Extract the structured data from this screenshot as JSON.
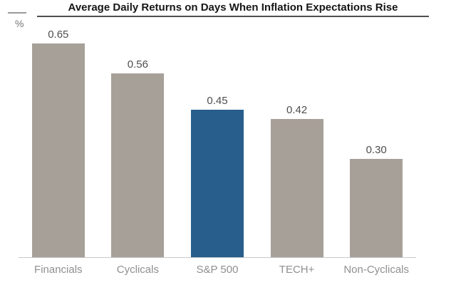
{
  "header": {
    "title": "Average Daily Returns on Days When Inflation Expectations Rise"
  },
  "axis": {
    "unit_label": "%"
  },
  "colors": {
    "bar_default": "#a7a099",
    "bar_highlight": "#275e8c",
    "title_text": "#161616",
    "title_rule": "#4f4f4f",
    "value_label": "#4d4d4d",
    "category_label": "#8f8f8f",
    "axis_line": "#c9c9c9",
    "background": "#ffffff"
  },
  "chart_data": {
    "type": "bar",
    "title": "Average Daily Returns on Days When Inflation Expectations Rise",
    "categories": [
      "Financials",
      "Cyclicals",
      "S&P 500",
      "TECH+",
      "Non-Cyclicals"
    ],
    "values": [
      0.65,
      0.56,
      0.45,
      0.42,
      0.3
    ],
    "value_labels": [
      "0.65",
      "0.56",
      "0.45",
      "0.42",
      "0.30"
    ],
    "bar_colors": [
      "#a7a099",
      "#a7a099",
      "#275e8c",
      "#a7a099",
      "#a7a099"
    ],
    "highlighted_category": "S&P 500",
    "xlabel": "",
    "ylabel": "%",
    "ylim": [
      0,
      0.78
    ],
    "grid": false,
    "legend": false,
    "value_labels_position": "above-bars"
  }
}
